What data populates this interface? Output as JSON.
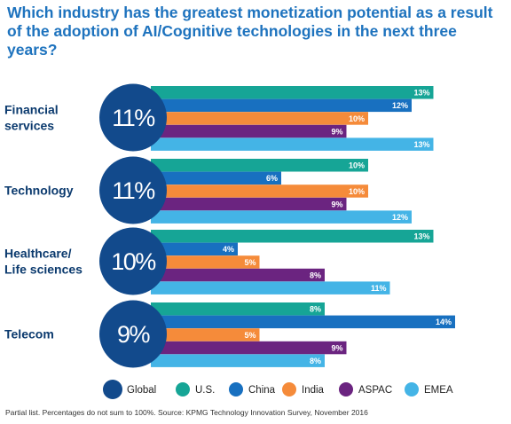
{
  "title": "Which industry has the greatest monetization potential as a result of the adoption of AI/Cognitive technologies in the next three years?",
  "footnote": "Partial list. Percentages do not sum to 100%. Source: KPMG Technology Innovation Survey, November 2016",
  "colors": {
    "Global": "#124a8c",
    "U.S.": "#16a596",
    "China": "#1870c0",
    "India": "#f58b3a",
    "ASPAC": "#6b2480",
    "EMEA": "#44b4e6"
  },
  "chart_data": {
    "type": "bar",
    "orientation": "horizontal",
    "title": "Which industry has the greatest monetization potential as a result of the adoption of AI/Cognitive technologies in the next three years?",
    "unit": "%",
    "categories": [
      {
        "label": "Financial\nservices",
        "global": "11%"
      },
      {
        "label": "Technology",
        "global": "11%"
      },
      {
        "label": "Healthcare/\nLife sciences",
        "global": "10%"
      },
      {
        "label": "Telecom",
        "global": "9%"
      }
    ],
    "series": [
      {
        "name": "U.S.",
        "values": [
          13,
          10,
          13,
          8
        ]
      },
      {
        "name": "China",
        "values": [
          12,
          6,
          4,
          14
        ]
      },
      {
        "name": "India",
        "values": [
          10,
          10,
          5,
          5
        ]
      },
      {
        "name": "ASPAC",
        "values": [
          9,
          9,
          8,
          9
        ]
      },
      {
        "name": "EMEA",
        "values": [
          13,
          12,
          11,
          8
        ]
      }
    ],
    "legend": [
      "Global",
      "U.S.",
      "China",
      "India",
      "ASPAC",
      "EMEA"
    ],
    "legend_position": "bottom"
  }
}
